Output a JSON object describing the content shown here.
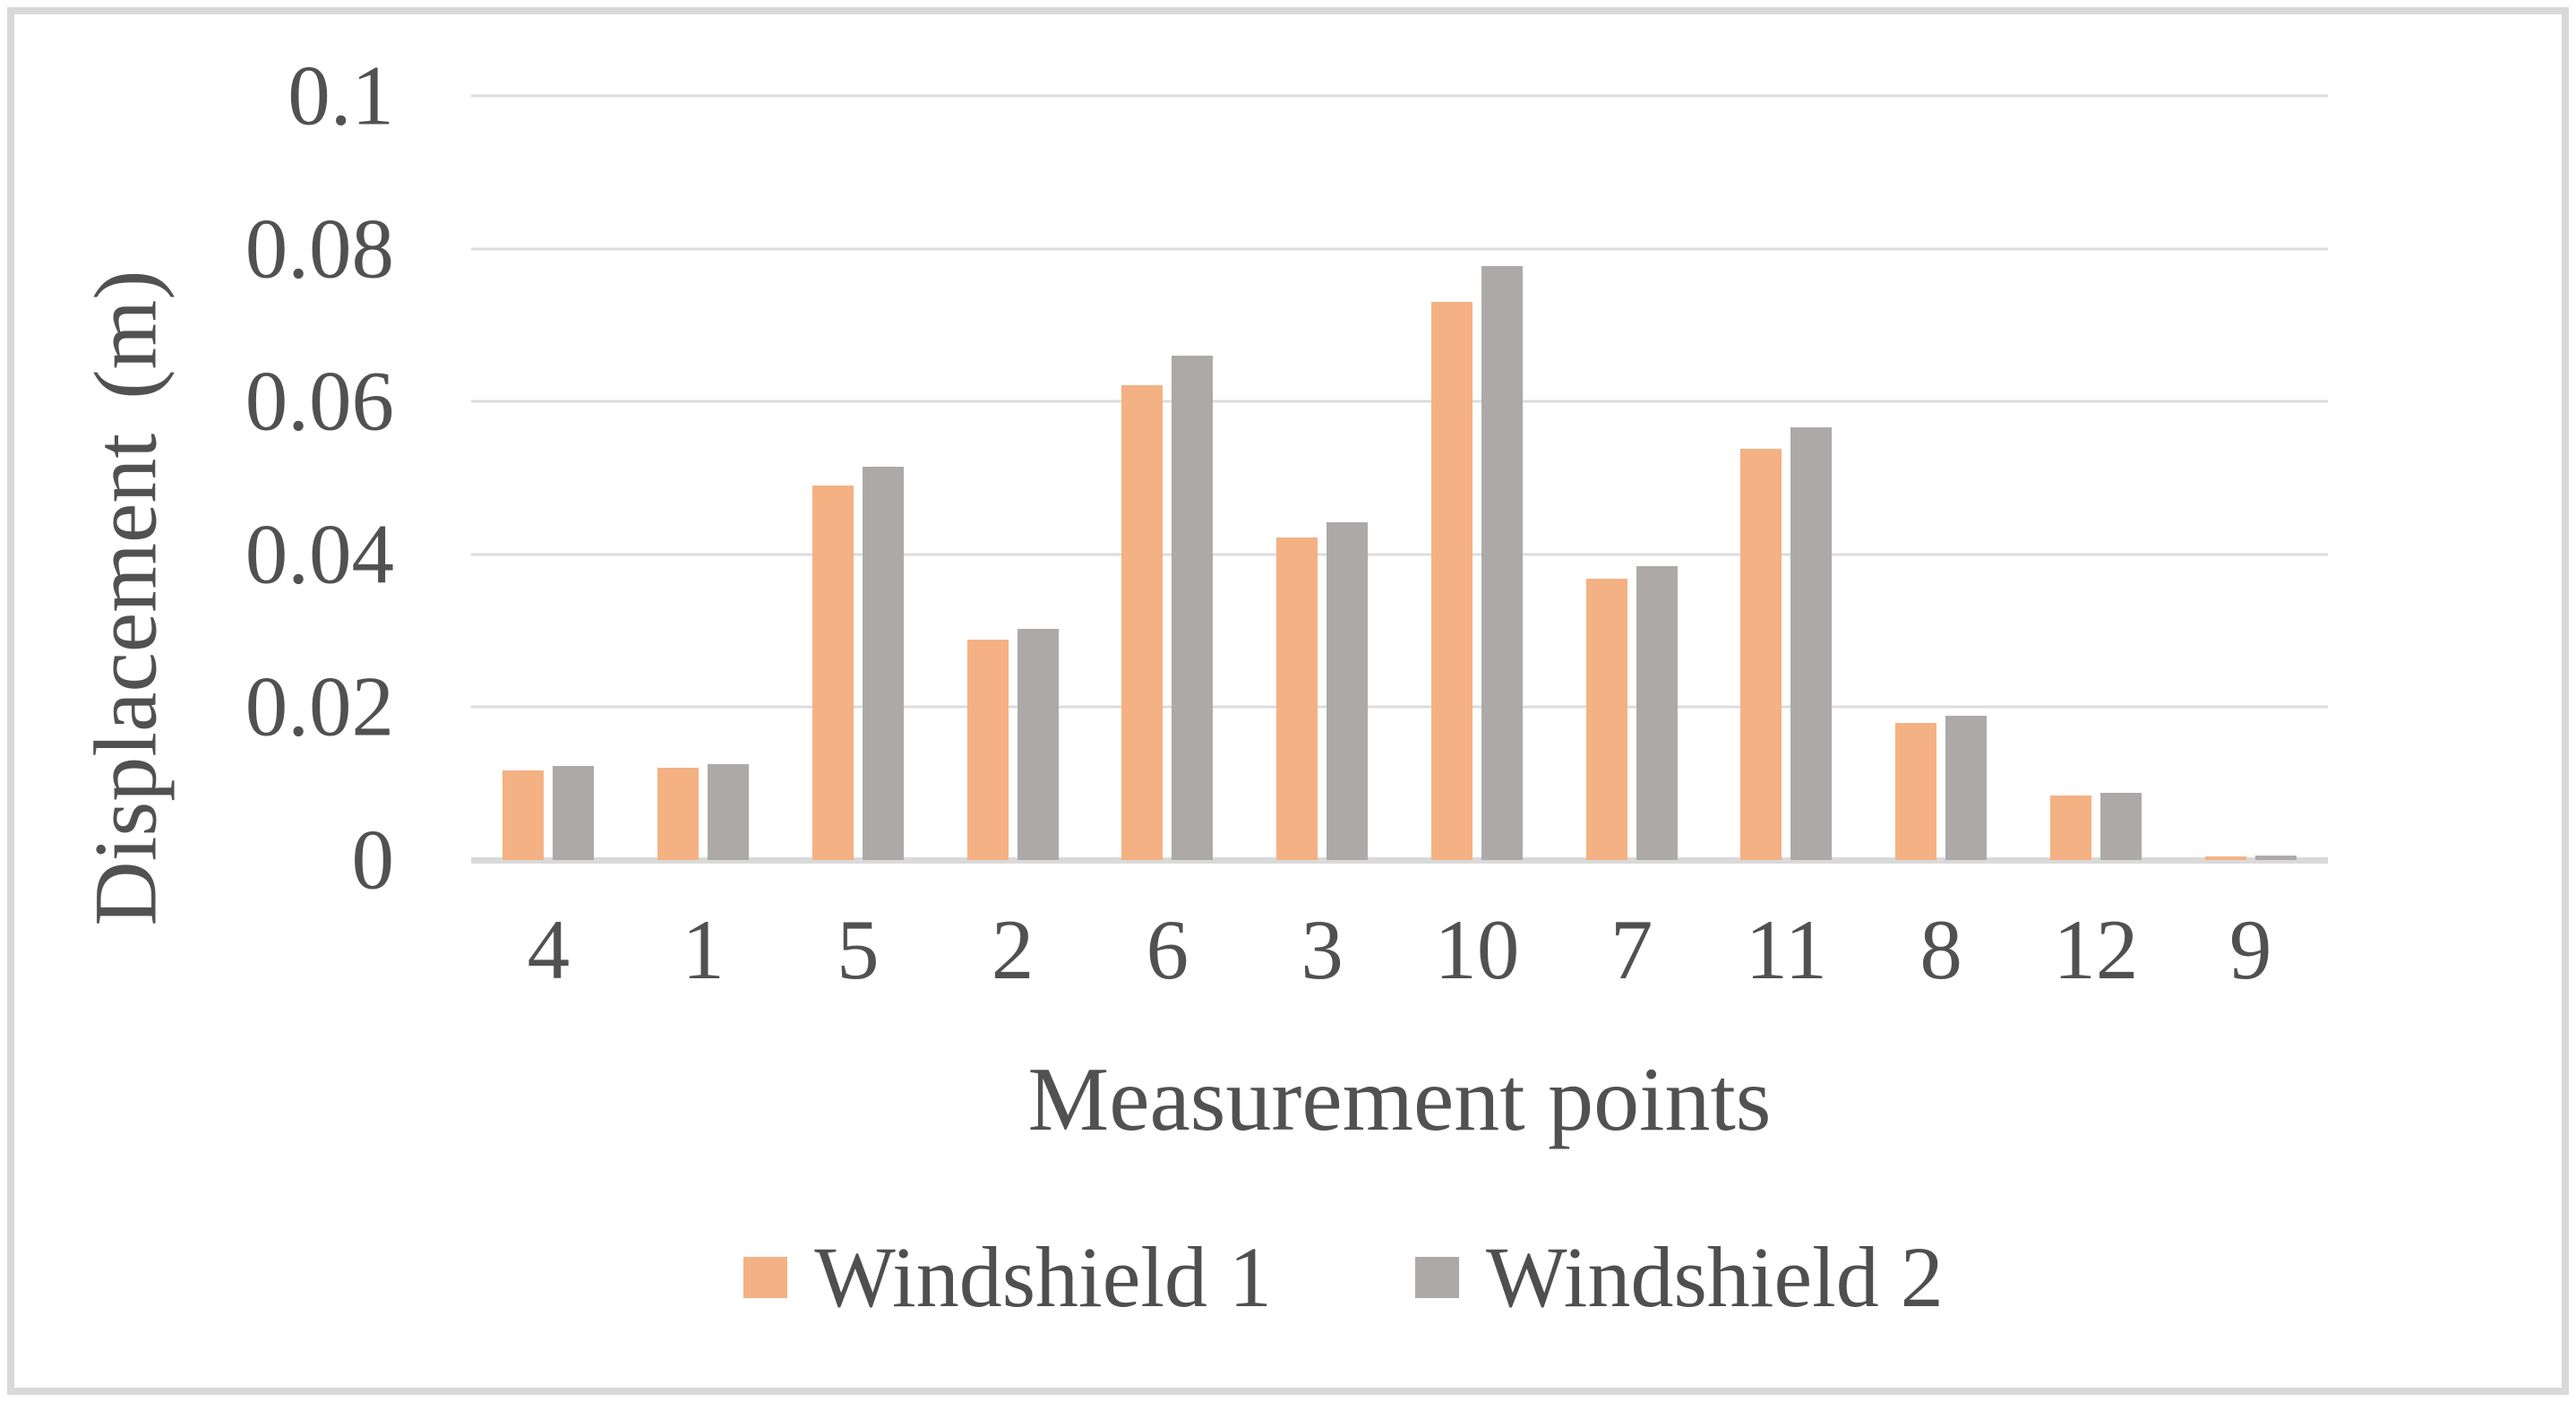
{
  "chart_data": {
    "type": "bar",
    "title": "",
    "xlabel": "Measurement points",
    "ylabel": "Displacement (m)",
    "ylabel_word": "Displacement",
    "ylabel_unit": "(m)",
    "categories": [
      "4",
      "1",
      "5",
      "2",
      "6",
      "3",
      "10",
      "7",
      "11",
      "8",
      "12",
      "9"
    ],
    "series": [
      {
        "name": "Windshield 1",
        "color": "#f4b183",
        "values": [
          0.0117,
          0.0121,
          0.049,
          0.0289,
          0.0621,
          0.0422,
          0.0731,
          0.0368,
          0.0538,
          0.0179,
          0.0085,
          0.0005
        ]
      },
      {
        "name": "Windshield 2",
        "color": "#aca9a8",
        "values": [
          0.0123,
          0.0125,
          0.0515,
          0.0303,
          0.066,
          0.0442,
          0.0777,
          0.0384,
          0.0566,
          0.0189,
          0.0088,
          0.0006
        ]
      }
    ],
    "y_ticks": [
      "0.1",
      "0.08",
      "0.06",
      "0.04",
      "0.02",
      "0"
    ],
    "y_tick_values": [
      0.1,
      0.08,
      0.06,
      0.04,
      0.02,
      0
    ],
    "ylim": [
      0,
      0.1
    ],
    "grid": "horizontal",
    "legend_position": "bottom",
    "colors": {
      "text": "#515151",
      "gridline": "#dcdcdc",
      "axis_line": "#d9d9d9",
      "chart_border": "#d9d9d9",
      "background": "#ffffff"
    }
  }
}
